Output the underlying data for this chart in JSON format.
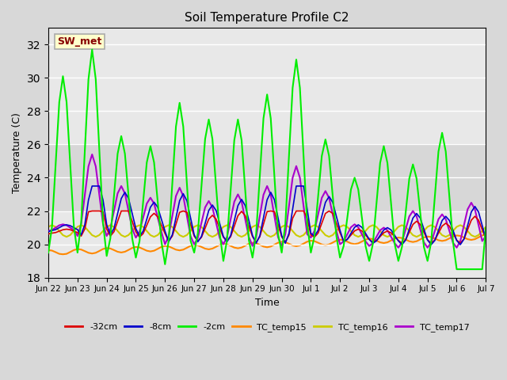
{
  "title": "Soil Temperature Profile C2",
  "xlabel": "Time",
  "ylabel": "Temperature (C)",
  "ylim": [
    18,
    33
  ],
  "yticks": [
    18,
    20,
    22,
    24,
    26,
    28,
    30,
    32
  ],
  "bg_color": "#d8d8d8",
  "plot_bg_color": "#e8e8e8",
  "annotation_text": "SW_met",
  "annotation_bg": "#ffffcc",
  "annotation_border": "#aaaaaa",
  "annotation_fg": "#880000",
  "series": {
    "neg32cm": {
      "color": "#dd0000",
      "label": "-32cm",
      "lw": 1.2
    },
    "neg8cm": {
      "color": "#0000cc",
      "label": "-8cm",
      "lw": 1.2
    },
    "neg2cm": {
      "color": "#00ee00",
      "label": "-2cm",
      "lw": 1.5
    },
    "tc15": {
      "color": "#ff8800",
      "label": "TC_temp15",
      "lw": 1.5
    },
    "tc16": {
      "color": "#cccc00",
      "label": "TC_temp16",
      "lw": 1.5
    },
    "tc17": {
      "color": "#aa00cc",
      "label": "TC_temp17",
      "lw": 1.5
    }
  },
  "xticklabels": [
    "Jun 22",
    "Jun 23",
    "Jun 24",
    "Jun 25",
    "Jun 26",
    "Jun 27",
    "Jun 28",
    "Jun 29",
    "Jun 30",
    "Jul 1",
    "Jul 2",
    "Jul 3",
    "Jul 4",
    "Jul 5",
    "Jul 6",
    "Jul 7"
  ],
  "n_days": 16,
  "gray_band": [
    22,
    26
  ],
  "neg2_peaks": [
    30.1,
    31.7,
    26.5,
    25.9,
    28.5,
    27.5,
    27.5,
    29.0,
    31.1,
    26.3,
    24.0,
    25.9,
    24.8,
    26.7,
    18.5,
    21.0
  ],
  "neg2_troughs": [
    19.5,
    19.5,
    19.3,
    19.2,
    18.8,
    19.5,
    19.0,
    19.2,
    19.5,
    19.5,
    19.2,
    19.0,
    19.0,
    19.0,
    18.5,
    21.0
  ],
  "tc17_peaks": [
    21.2,
    25.4,
    23.5,
    22.8,
    23.4,
    22.6,
    23.0,
    23.5,
    24.7,
    23.2,
    21.2,
    21.0,
    22.0,
    21.8,
    22.5,
    22.0
  ],
  "tc17_troughs": [
    20.8,
    20.5,
    20.5,
    20.4,
    20.0,
    20.0,
    20.0,
    19.9,
    19.9,
    20.4,
    20.0,
    19.9,
    19.8,
    19.8,
    19.8,
    20.5
  ]
}
